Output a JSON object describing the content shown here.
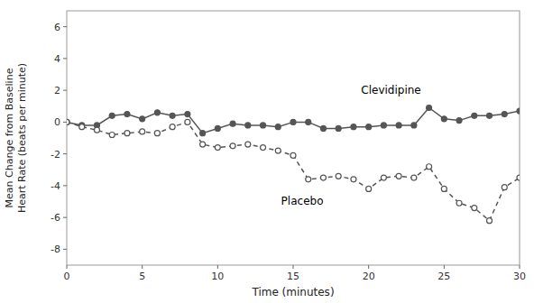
{
  "chart_data": {
    "type": "line",
    "xlabel": "Time (minutes)",
    "ylabel": "Mean Change from Baseline\nHeart Rate (beats per minute)",
    "x": [
      0,
      1,
      2,
      3,
      4,
      5,
      6,
      7,
      8,
      9,
      10,
      11,
      12,
      13,
      14,
      15,
      16,
      17,
      18,
      19,
      20,
      21,
      22,
      23,
      24,
      25,
      26,
      27,
      28,
      29,
      30
    ],
    "series": [
      {
        "color": "#555555",
        "line_style": "solid",
        "marker": "circle",
        "values": [
          0,
          -0.2,
          -0.2,
          0.4,
          0.5,
          0.2,
          0.6,
          0.4,
          0.5,
          -0.7,
          -0.4,
          -0.1,
          -0.2,
          -0.2,
          -0.3,
          0.0,
          0.0,
          -0.4,
          -0.4,
          -0.3,
          -0.3,
          -0.2,
          -0.2,
          -0.2,
          0.9,
          0.2,
          0.1,
          0.4,
          0.4,
          0.5,
          0.7
        ]
      },
      {
        "color": "#555555",
        "line_style": "dashed",
        "marker": "open-circle",
        "values": [
          0,
          -0.3,
          -0.5,
          -0.8,
          -0.7,
          -0.6,
          -0.7,
          -0.3,
          0.0,
          -1.4,
          -1.6,
          -1.5,
          -1.4,
          -1.6,
          -1.8,
          -2.1,
          -3.6,
          -3.5,
          -3.4,
          -3.6,
          -4.2,
          -3.5,
          -3.4,
          -3.5,
          -2.8,
          -4.2,
          -5.1,
          -5.4,
          -6.2,
          -4.1,
          -3.5
        ]
      }
    ],
    "annotations": [
      {
        "text": "Clevidipine",
        "x": 19.5,
        "y": 1.8
      },
      {
        "text": "Placebo",
        "x": 14.2,
        "y": -5.2
      }
    ],
    "xlim": [
      0,
      30
    ],
    "ylim": [
      -9,
      7
    ],
    "xticks": [
      0,
      5,
      10,
      15,
      20,
      25,
      30
    ],
    "yticks": [
      -8,
      -6,
      -4,
      -2,
      0,
      2,
      4,
      6
    ],
    "grid": false
  }
}
